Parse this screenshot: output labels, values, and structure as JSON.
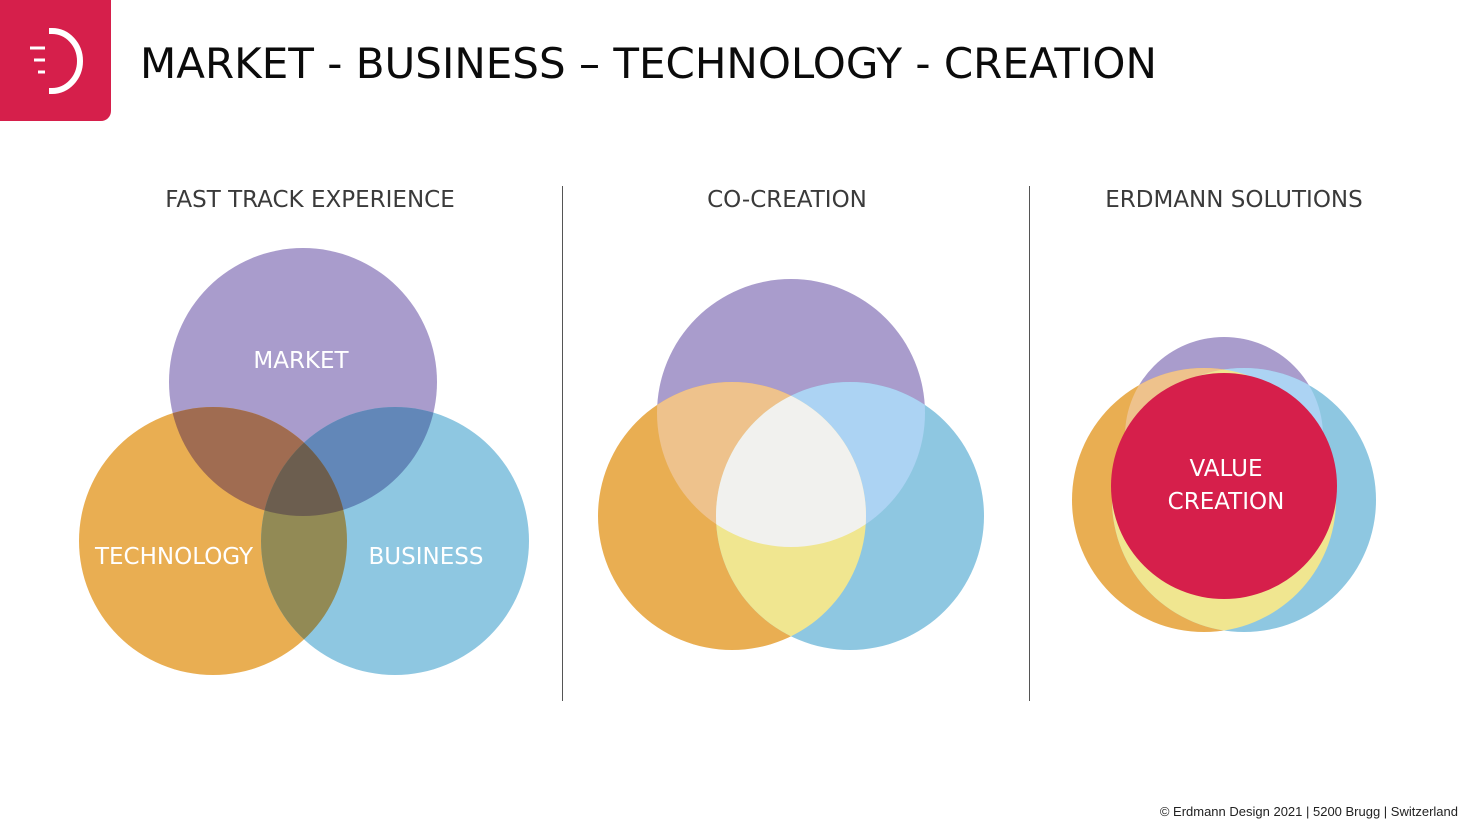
{
  "page": {
    "title": "MARKET - BUSINESS – TECHNOLOGY - CREATION",
    "footer": "© Erdmann Design 2021 | 5200 Brugg | Switzerland"
  },
  "brand": {
    "accent": "#d61f4b",
    "logo_icon": "erdmann-d-logo-icon"
  },
  "colors": {
    "market": "#a99ccc",
    "technology": "#e9ae52",
    "business": "#8ec7e1",
    "market_technology": "#a06c51",
    "market_business": "#6287b8",
    "technology_business": "#928a55",
    "all_three_dark": "#6c5e4f",
    "market_technology_light": "#eec28c",
    "market_business_light": "#acd3f3",
    "technology_business_light": "#f0e690",
    "center_light": "#f1f1ee",
    "value_creation": "#d61f4b"
  },
  "panels": [
    {
      "title": "FAST TRACK EXPERIENCE",
      "labels": {
        "market": "MARKET",
        "technology": "TECHNOLOGY",
        "business": "BUSINESS"
      }
    },
    {
      "title": "CO-CREATION"
    },
    {
      "title": "ERDMANN SOLUTIONS",
      "labels": {
        "value_line1": "VALUE",
        "value_line2": "CREATION"
      }
    }
  ]
}
